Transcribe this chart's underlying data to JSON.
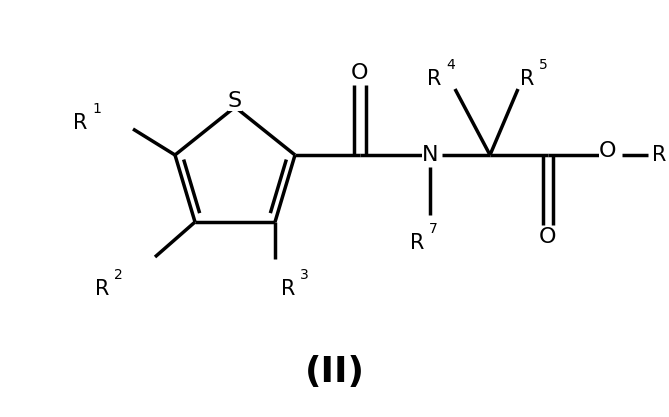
{
  "title": "(II)",
  "background_color": "#ffffff",
  "line_color": "#000000",
  "line_width": 2.5,
  "font_size_main": 15,
  "font_size_sub": 10,
  "font_size_title": 26,
  "figsize": [
    6.69,
    4.17
  ],
  "dpi": 100,
  "xlim": [
    0,
    6.69
  ],
  "ylim": [
    0,
    4.17
  ]
}
